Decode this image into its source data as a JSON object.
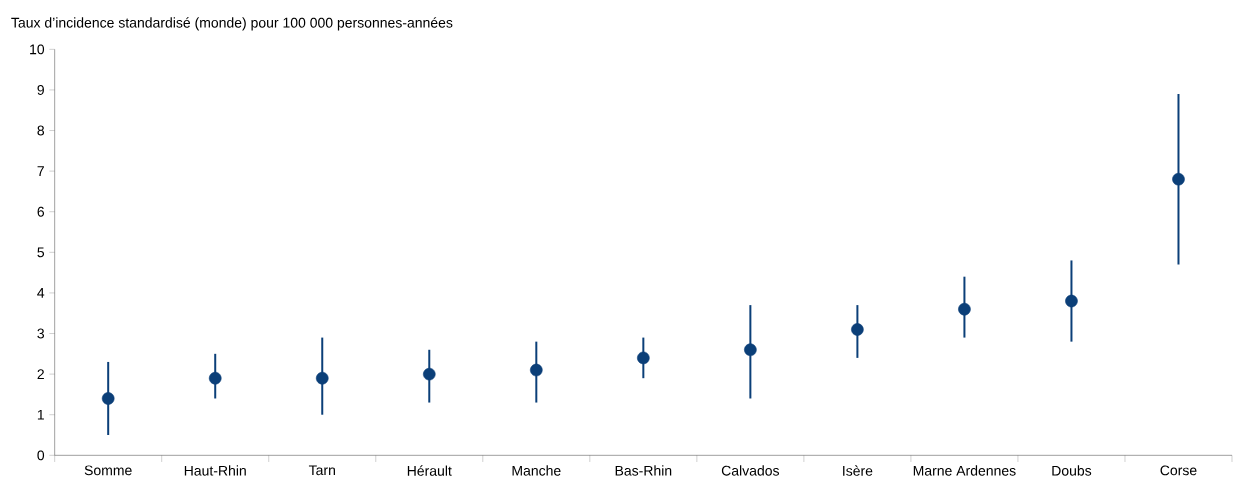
{
  "chart_data": {
    "type": "scatter",
    "ylabel": "Taux d’incidence standardisé (monde) pour 100 000 personnes-années",
    "categories": [
      "Somme",
      "Haut-Rhin",
      "Tarn",
      "Hérault",
      "Manche",
      "Bas-Rhin",
      "Calvados",
      "Isère",
      "Marne Ardennes",
      "Doubs",
      "Corse"
    ],
    "values": [
      1.4,
      1.9,
      1.9,
      2.0,
      2.1,
      2.4,
      2.6,
      3.1,
      3.6,
      3.8,
      6.8
    ],
    "errors": [
      [
        0.5,
        2.3
      ],
      [
        1.4,
        2.5
      ],
      [
        1.0,
        2.9
      ],
      [
        1.3,
        2.6
      ],
      [
        1.3,
        2.8
      ],
      [
        1.9,
        2.9
      ],
      [
        1.4,
        3.7
      ],
      [
        2.4,
        3.7
      ],
      [
        2.9,
        4.4
      ],
      [
        2.8,
        4.8
      ],
      [
        4.7,
        8.9
      ]
    ],
    "color": "#0b3f78",
    "marker": "circle",
    "ylim": [
      0,
      10
    ],
    "yticks": [
      0,
      1,
      2,
      3,
      4,
      5,
      6,
      7,
      8,
      9,
      10
    ]
  }
}
